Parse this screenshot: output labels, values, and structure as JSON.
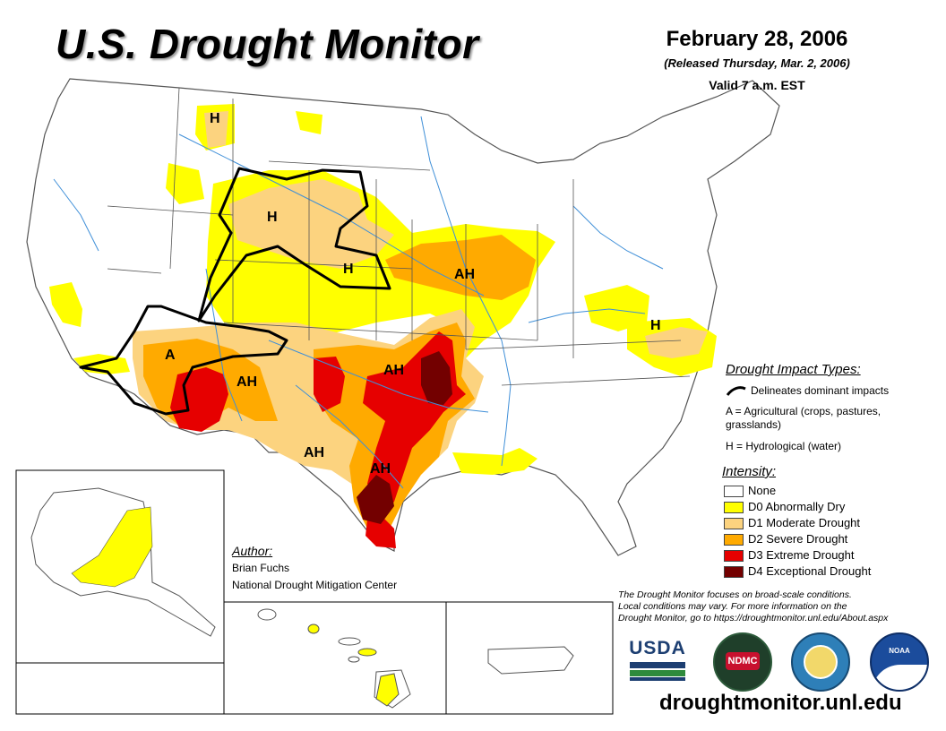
{
  "header": {
    "title": "U.S. Drought Monitor",
    "date": "February 28, 2006",
    "released": "(Released Thursday, Mar. 2, 2006)",
    "valid": "Valid 7 a.m. EST"
  },
  "impact_legend": {
    "title": "Drought Impact Types:",
    "line": "Delineates dominant impacts",
    "a_label": "A = Agricultural (crops, pastures,",
    "a_label_cont": "grasslands)",
    "h_label": "H = Hydrological (water)"
  },
  "intensity_legend": {
    "title": "Intensity:",
    "items": [
      {
        "label": "None",
        "color": "#ffffff"
      },
      {
        "label": "D0 Abnormally Dry",
        "color": "#ffff00"
      },
      {
        "label": "D1 Moderate Drought",
        "color": "#fcd37f"
      },
      {
        "label": "D2 Severe Drought",
        "color": "#ffaa00"
      },
      {
        "label": "D3 Extreme Drought",
        "color": "#e60000"
      },
      {
        "label": "D4 Exceptional Drought",
        "color": "#730000"
      }
    ]
  },
  "author": {
    "title": "Author:",
    "name": "Brian Fuchs",
    "org": "National Drought Mitigation Center"
  },
  "footer": {
    "note_1": "The Drought Monitor focuses on broad-scale conditions.",
    "note_2": "Local conditions may vary. For more information on the",
    "note_3": "Drought Monitor, go to https://droughtmonitor.unl.edu/About.aspx",
    "url": "droughtmonitor.unl.edu"
  },
  "logos": {
    "usda": "USDA",
    "ndmc": "NDMC",
    "noaa": "NOAA"
  },
  "map_labels": {
    "h_montana": "H",
    "h_wyoming": "H",
    "h_nebraska": "H",
    "ah_iowa": "AH",
    "a_arizona": "A",
    "ah_newmexico": "AH",
    "ah_oklahoma": "AH",
    "ah_westtexas": "AH",
    "ah_southtexas": "AH",
    "h_carolinas": "H"
  },
  "colors": {
    "none": "#ffffff",
    "d0": "#ffff00",
    "d1": "#fcd37f",
    "d2": "#ffaa00",
    "d3": "#e60000",
    "d4": "#730000",
    "river": "#3f8fd8",
    "border": "#555555"
  }
}
